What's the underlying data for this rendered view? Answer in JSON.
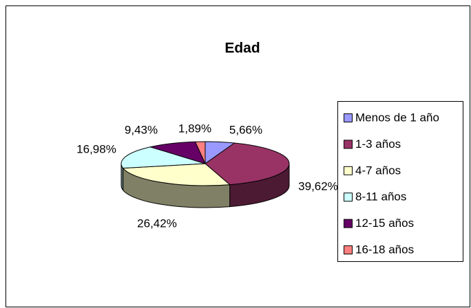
{
  "chart_data": {
    "type": "pie3d",
    "title": "Edad",
    "categories": [
      "Menos de 1 año",
      "1-3 años",
      "4-7 años",
      "8-11 años",
      "12-15 años",
      "16-18 años"
    ],
    "values": [
      5.66,
      39.62,
      26.42,
      16.98,
      9.43,
      1.89
    ],
    "value_labels": [
      "5,66%",
      "39,62%",
      "26,42%",
      "16,98%",
      "9,43%",
      "1,89%"
    ],
    "colors": [
      "#9999FF",
      "#993366",
      "#FFFFCC",
      "#CCFFFF",
      "#660066",
      "#FF8080"
    ],
    "legend": "right"
  }
}
